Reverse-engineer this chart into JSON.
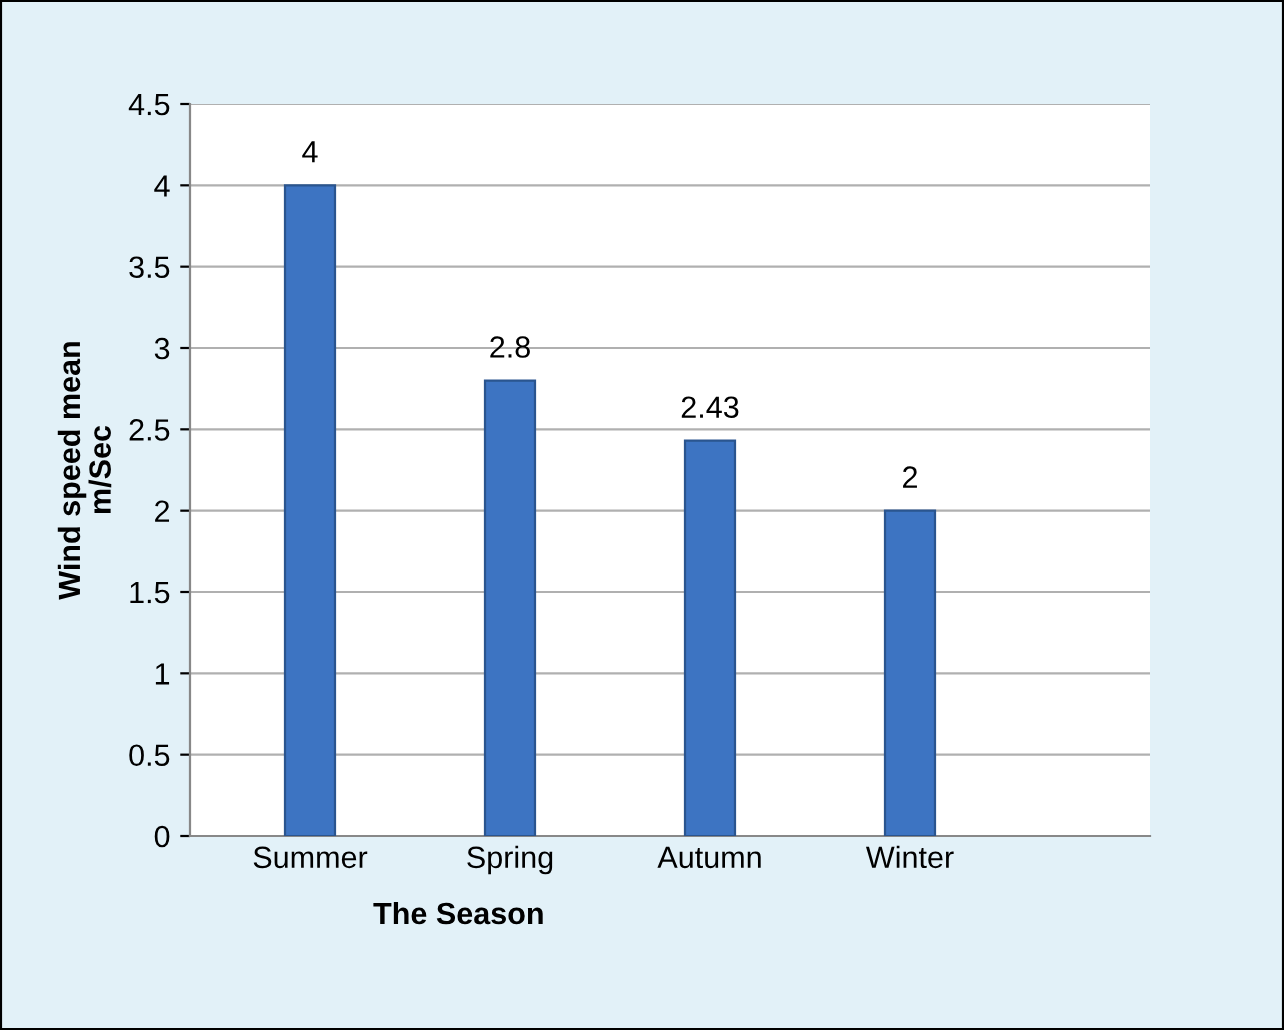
{
  "chart_data": {
    "type": "bar",
    "xlabel": "The Season",
    "ylabel": "Wind speed mean\nm/Sec",
    "categories": [
      "Summer",
      "Spring",
      "Autumn",
      "Winter"
    ],
    "values": [
      4,
      2.8,
      2.43,
      2
    ],
    "color": "#3d74c2",
    "ylim": [
      0,
      4.5
    ],
    "yticks": [
      0,
      0.5,
      1,
      1.5,
      2,
      2.5,
      3,
      3.5,
      4,
      4.5
    ],
    "grid": "y",
    "data_labels": true
  }
}
